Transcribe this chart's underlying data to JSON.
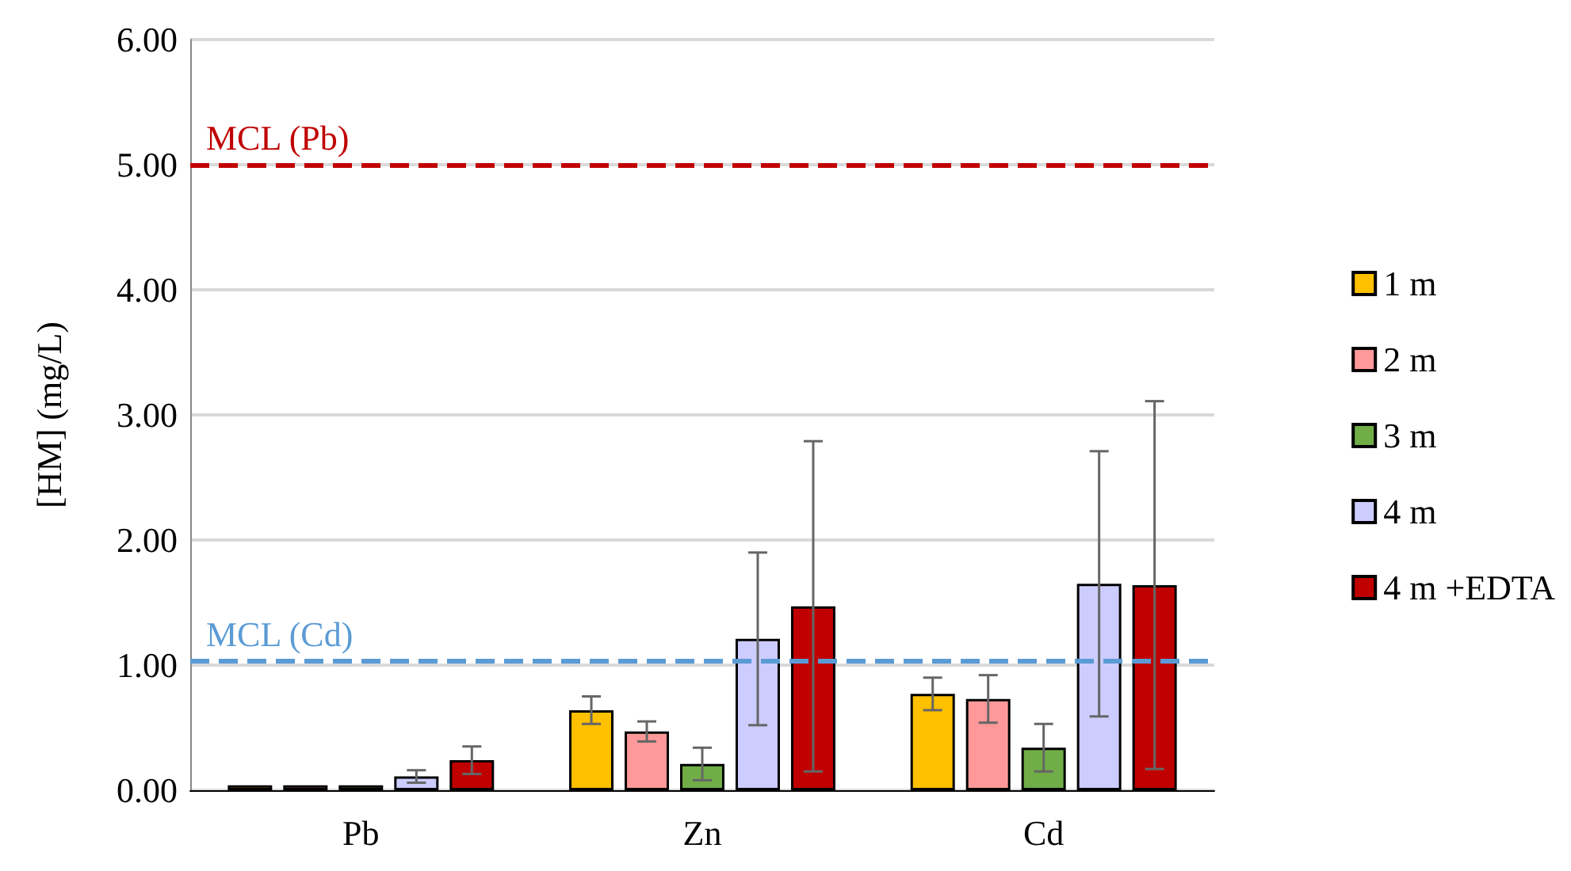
{
  "chart_data": {
    "type": "bar",
    "ylabel": "[HM] (mg/L)",
    "categories": [
      "Pb",
      "Zn",
      "Cd"
    ],
    "series": [
      {
        "name": "1 m",
        "color": "#ffc000",
        "values": [
          0.04,
          0.64,
          0.77
        ],
        "errors": [
          null,
          0.11,
          0.13
        ]
      },
      {
        "name": "2 m",
        "color": "#ff9999",
        "values": [
          0.04,
          0.47,
          0.73
        ],
        "errors": [
          null,
          0.08,
          0.19
        ]
      },
      {
        "name": "3 m",
        "color": "#70ad47",
        "values": [
          0.04,
          0.21,
          0.34
        ],
        "errors": [
          null,
          0.13,
          0.19
        ]
      },
      {
        "name": "4 m",
        "color": "#ccccff",
        "values": [
          0.11,
          1.21,
          1.65
        ],
        "errors": [
          0.05,
          0.69,
          1.06
        ]
      },
      {
        "name": "4 m +EDTA",
        "color": "#c00000",
        "values": [
          0.24,
          1.47,
          1.64
        ],
        "errors": [
          0.11,
          1.32,
          1.47
        ]
      }
    ],
    "ylim": [
      0,
      6
    ],
    "yticks": [
      {
        "value": 0,
        "label": "0.00"
      },
      {
        "value": 1,
        "label": "1.00"
      },
      {
        "value": 2,
        "label": "2.00"
      },
      {
        "value": 3,
        "label": "3.00"
      },
      {
        "value": 4,
        "label": "4.00"
      },
      {
        "value": 5,
        "label": "5.00"
      },
      {
        "value": 6,
        "label": "6.00"
      }
    ],
    "ref_lines": [
      {
        "axis": "y",
        "value": 5,
        "label": "MCL (Pb)",
        "color": "#c00000",
        "line_style": "dashed"
      },
      {
        "axis": "y",
        "value": 1.03,
        "label": "MCL (Cd)",
        "color": "#5b9bd5",
        "line_style": "dashed"
      }
    ],
    "grid": "y",
    "legend": "right"
  }
}
